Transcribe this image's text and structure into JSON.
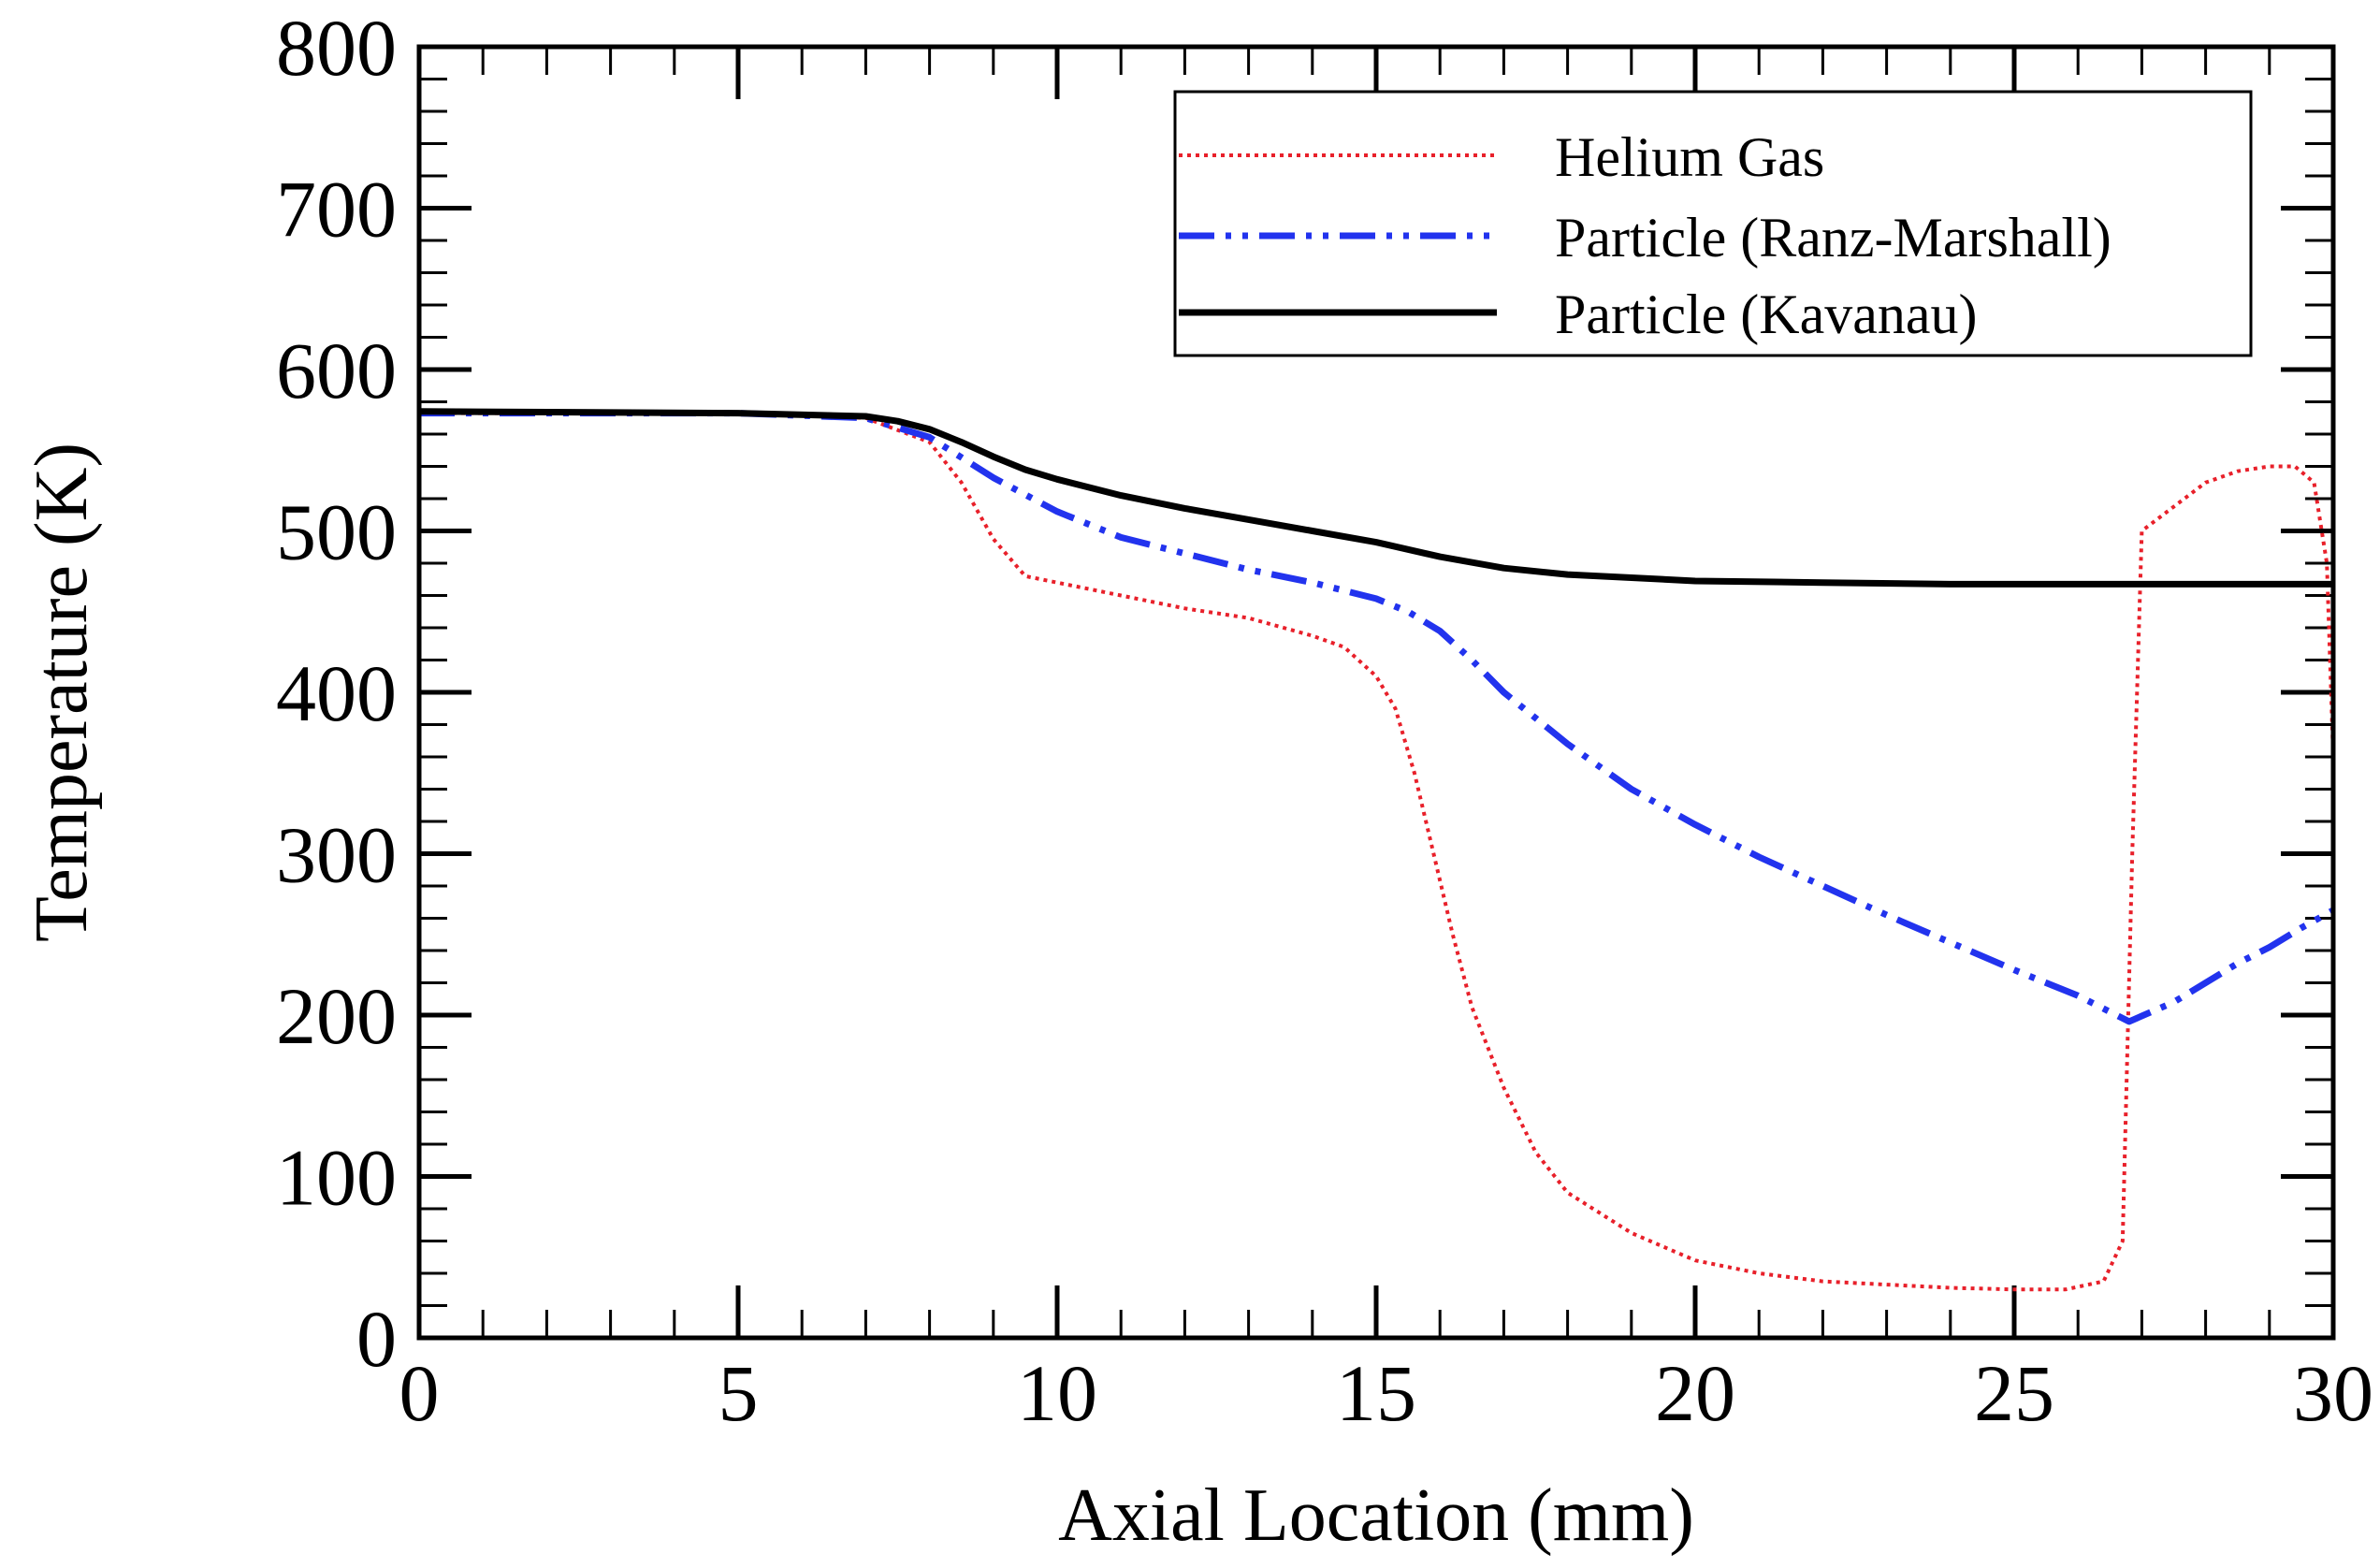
{
  "chart_data": {
    "type": "line",
    "title": "",
    "xlabel": "Axial Location (mm)",
    "ylabel": "Temperature (K)",
    "xlim": [
      0,
      30
    ],
    "ylim": [
      0,
      800
    ],
    "xticks": [
      0,
      5,
      10,
      15,
      20,
      25,
      30
    ],
    "yticks": [
      0,
      100,
      200,
      300,
      400,
      500,
      600,
      700,
      800
    ],
    "x_minor_step": 1,
    "y_minor_step": 20,
    "grid": false,
    "legend_position": "top-right",
    "series": [
      {
        "name": "Helium Gas",
        "color": "#e8202a",
        "style": "dotted",
        "x": [
          0,
          5,
          7,
          8,
          8.5,
          9,
          9.5,
          10,
          11,
          12,
          13,
          14,
          14.5,
          15,
          15.3,
          15.6,
          15.9,
          16.2,
          16.5,
          17,
          17.5,
          18,
          19,
          20,
          21,
          22,
          23,
          24,
          25,
          25.8,
          26.4,
          26.7,
          26.85,
          27,
          27.5,
          28,
          28.5,
          29,
          29.4,
          29.7,
          29.9,
          30
        ],
        "values": [
          573,
          573,
          570,
          555,
          530,
          495,
          472,
          468,
          460,
          452,
          446,
          435,
          428,
          410,
          390,
          350,
          300,
          250,
          205,
          155,
          115,
          90,
          65,
          48,
          40,
          35,
          33,
          31,
          30,
          30,
          35,
          60,
          300,
          500,
          515,
          530,
          537,
          540,
          540,
          530,
          480,
          360
        ]
      },
      {
        "name": "Particle (Ranz-Marshall)",
        "color": "#2233ee",
        "style": "dash-dot-dot",
        "x": [
          0,
          5,
          7,
          8,
          9,
          10,
          11,
          12,
          13,
          14,
          15,
          15.5,
          16,
          16.5,
          17,
          18,
          19,
          20,
          21,
          22,
          23,
          24,
          25,
          26,
          26.8,
          27.5,
          28,
          28.5,
          29,
          29.5,
          30
        ],
        "values": [
          573,
          573,
          570,
          558,
          533,
          512,
          496,
          486,
          476,
          468,
          458,
          450,
          438,
          420,
          400,
          368,
          340,
          318,
          298,
          280,
          262,
          245,
          228,
          212,
          196,
          208,
          220,
          232,
          242,
          254,
          265
        ]
      },
      {
        "name": "Particle (Kavanau)",
        "color": "#000000",
        "style": "solid",
        "x": [
          0,
          5,
          7,
          7.5,
          8,
          8.5,
          9,
          9.5,
          10,
          11,
          12,
          13,
          14,
          15,
          16,
          17,
          18,
          19,
          20,
          22,
          24,
          26,
          28,
          30
        ],
        "values": [
          574,
          573,
          571,
          568,
          563,
          555,
          546,
          538,
          532,
          522,
          514,
          507,
          500,
          493,
          484,
          477,
          473,
          471,
          469,
          468,
          467,
          467,
          467,
          467
        ]
      }
    ]
  }
}
